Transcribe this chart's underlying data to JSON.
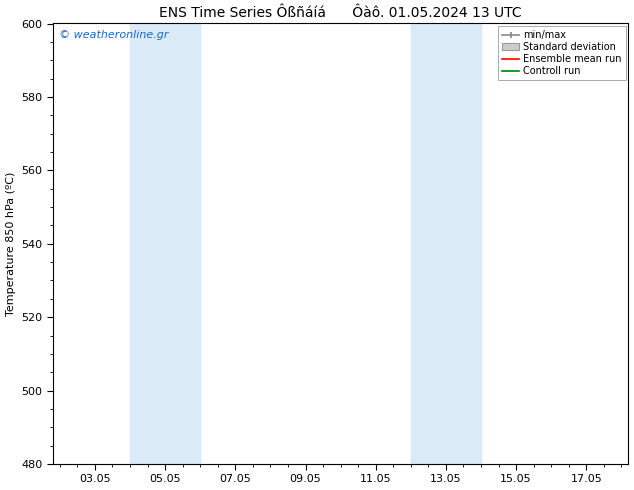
{
  "title": "ENS Time Series Ôßñáíá      Ôàô. 01.05.2024 13 UTC",
  "ylabel": "Temperature 850 hPa (ºC)",
  "ylim": [
    480,
    600
  ],
  "yticks": [
    480,
    500,
    520,
    540,
    560,
    580,
    600
  ],
  "xlim_start": 0,
  "xlim_end": 14,
  "xtick_labels": [
    "03.05",
    "05.05",
    "07.05",
    "09.05",
    "11.05",
    "13.05",
    "15.05",
    "17.05"
  ],
  "xtick_positions": [
    1,
    3,
    5,
    7,
    9,
    11,
    13,
    15
  ],
  "shaded_bands": [
    {
      "x_start": 2,
      "x_end": 4,
      "color": "#daeaf7"
    },
    {
      "x_start": 10,
      "x_end": 12,
      "color": "#daeaf7"
    }
  ],
  "watermark_text": "© weatheronline.gr",
  "watermark_color": "#1a66cc",
  "background_color": "#ffffff",
  "plot_bg_color": "#ffffff",
  "title_fontsize": 10,
  "axis_fontsize": 8,
  "tick_fontsize": 8,
  "watermark_fontsize": 8
}
